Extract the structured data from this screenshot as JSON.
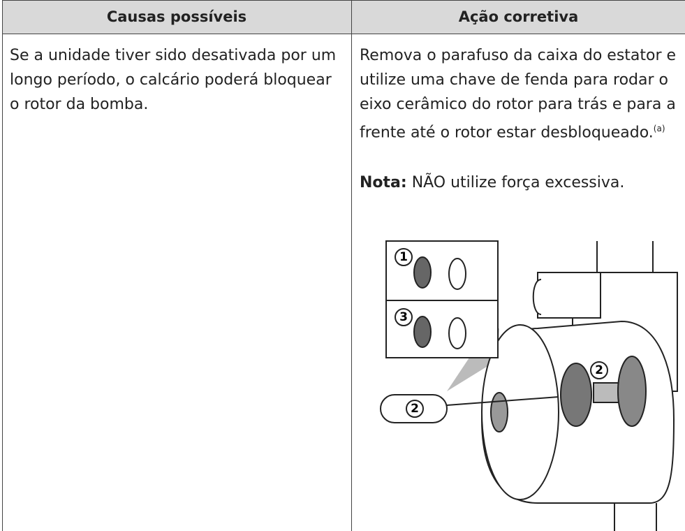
{
  "table": {
    "headers": [
      "Causas possíveis",
      "Ação corretiva"
    ],
    "rows": [
      [
        {
          "text": "Se a unidade tiver sido desativada por um longo período, o calcário poderá bloquear o rotor da bomba."
        },
        {
          "text": "Remova o parafuso da caixa do estator e utilize uma chave de fenda para rodar o eixo cerâmico do rotor para trás e para a frente até o rotor estar desbloqueado.",
          "footnote_ref": "(a)",
          "note_label": "Nota:",
          "note_text": "NÃO utilize força excessiva."
        }
      ]
    ]
  },
  "figure": {
    "callouts": [
      "1",
      "3",
      "2",
      "2"
    ]
  }
}
